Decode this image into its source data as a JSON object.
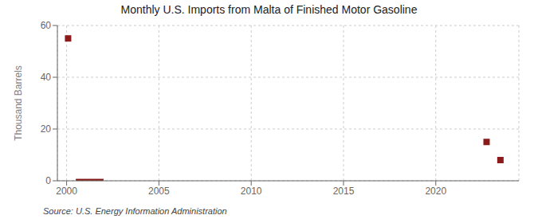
{
  "chart_data": {
    "type": "scatter",
    "title": "Monthly U.S. Imports from Malta of Finished Motor Gasoline",
    "y_label": "Thousand Barrels",
    "source": "Source: U.S. Energy Information Administration",
    "xlim": [
      1999.5,
      2024.5
    ],
    "xticks": [
      2000,
      2005,
      2010,
      2015,
      2020
    ],
    "ylim": [
      0,
      60
    ],
    "yticks": [
      0,
      20,
      40,
      60
    ],
    "grid": true,
    "series": [
      {
        "type": "scatter",
        "color": "#8b1a1a",
        "marker": "square",
        "x": [
          2000.08,
          2022.75,
          2023.5
        ],
        "values": [
          55,
          15,
          8
        ]
      },
      {
        "type": "area",
        "color": "#8b1a1a",
        "x": [
          2000.5,
          2002.0
        ],
        "values": [
          0.6,
          0.6
        ]
      }
    ]
  }
}
